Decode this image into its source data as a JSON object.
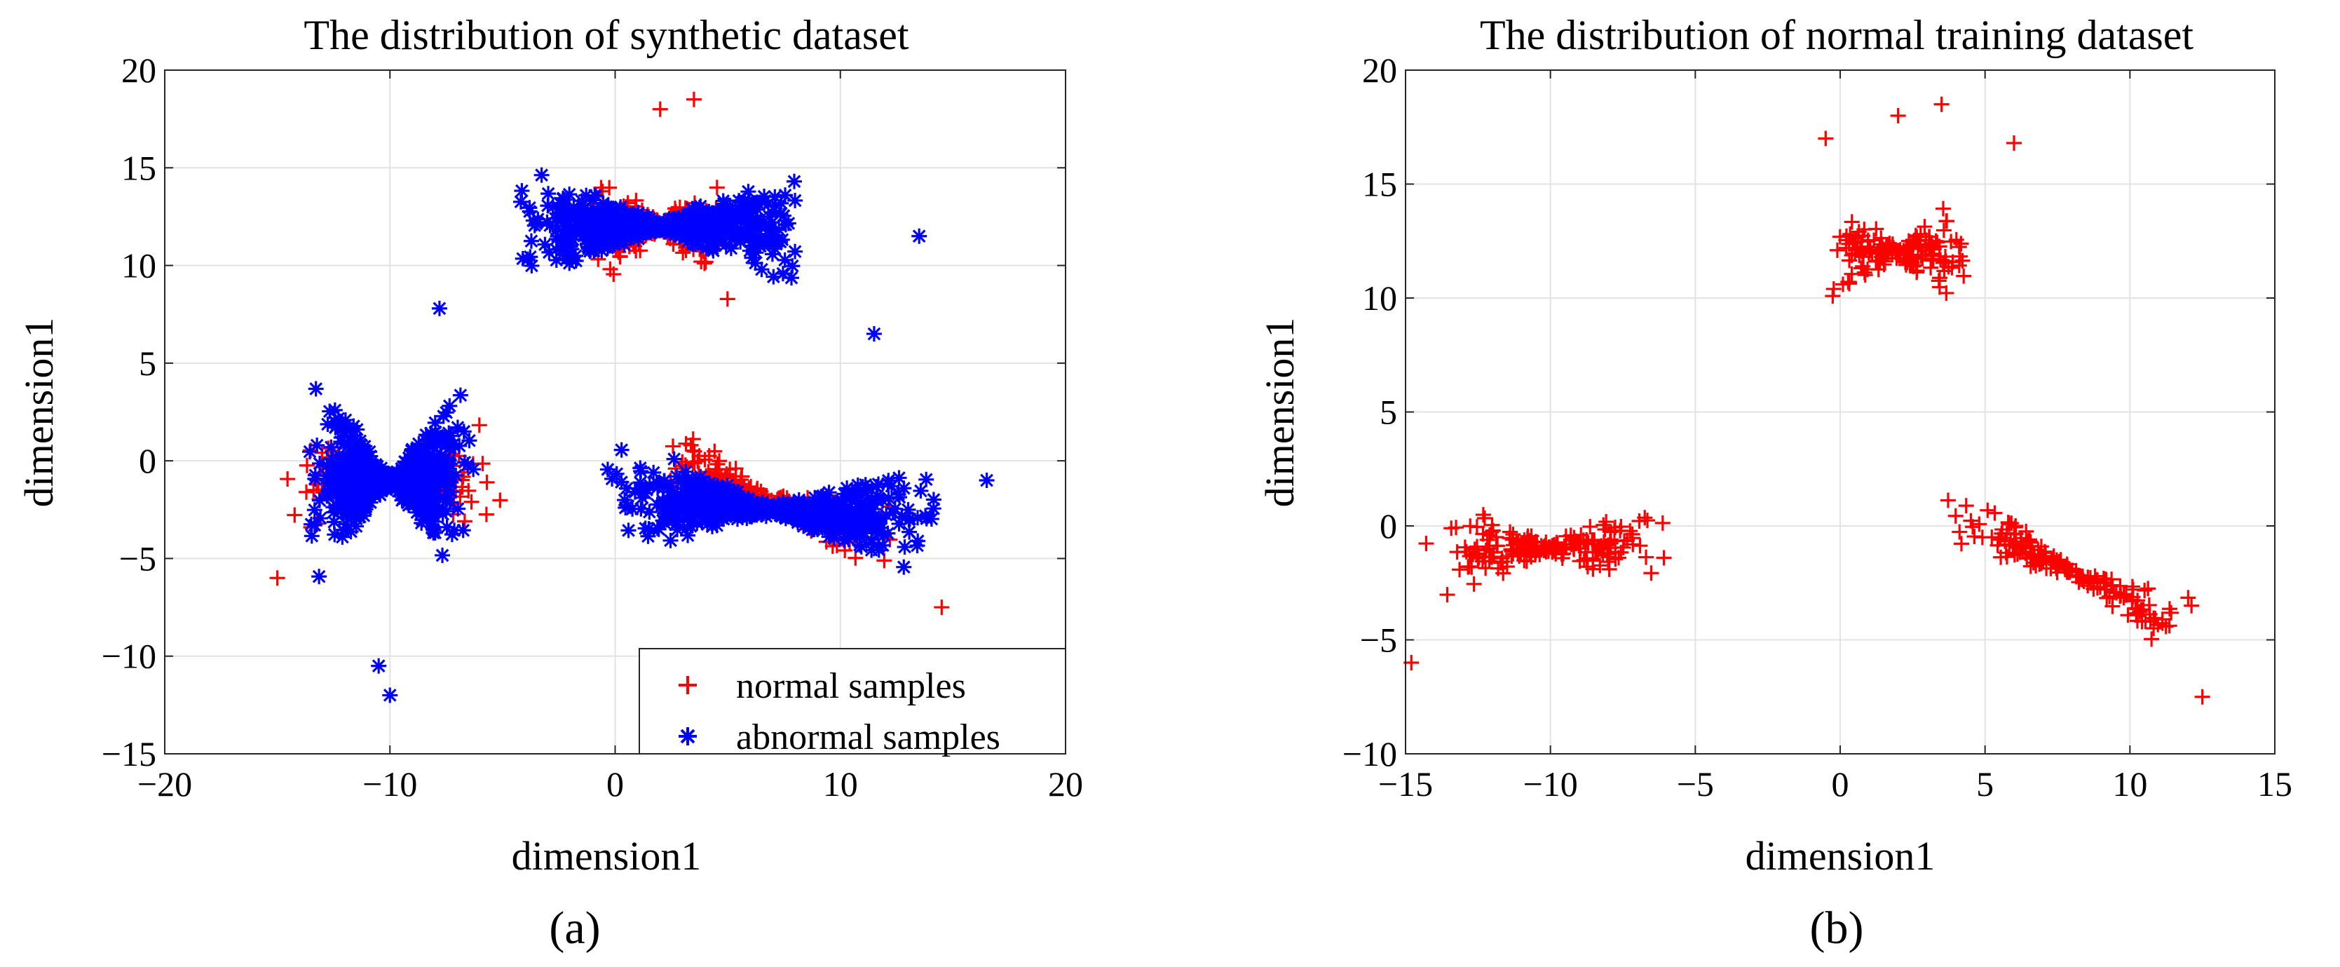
{
  "chart_data": [
    {
      "type": "scatter",
      "panel_label": "(a)",
      "title": "The distribution of synthetic dataset",
      "xlabel": "dimension1",
      "ylabel": "dimension1",
      "xlim": [
        -20,
        20
      ],
      "ylim": [
        -15,
        20
      ],
      "xticks": [
        -20,
        -10,
        0,
        10,
        20
      ],
      "yticks": [
        -15,
        -10,
        -5,
        0,
        5,
        10,
        15,
        20
      ],
      "grid": true,
      "legend_position": "bottom-right",
      "series": [
        {
          "name": "normal samples",
          "marker": "plus",
          "color": "#ff0000",
          "clusters": [
            {
              "center": [
                -10,
                -1
              ],
              "x_half_width": 5,
              "y_spread_at_ends": 3.5,
              "n": 220,
              "tilt": 0.0
            },
            {
              "center": [
                2,
                12
              ],
              "x_half_width": 3.5,
              "y_spread_at_ends": 4.5,
              "n": 200,
              "tilt": 0.0
            },
            {
              "center": [
                7,
                -2
              ],
              "x_half_width": 6,
              "y_spread_at_ends": 3,
              "n": 200,
              "tilt": -0.4
            }
          ],
          "extremes": [
            [
              3.5,
              18.5
            ],
            [
              2,
              18
            ],
            [
              -15,
              -6
            ],
            [
              14.5,
              -7.5
            ]
          ]
        },
        {
          "name": "abnormal samples",
          "marker": "asterisk",
          "color": "#0000ff",
          "clusters": [
            {
              "center": [
                -10,
                -1
              ],
              "x_half_width": 4,
              "y_spread_at_ends": 6.5,
              "n": 650,
              "tilt": 0.0
            },
            {
              "center": [
                2,
                12
              ],
              "x_half_width": 7,
              "y_spread_at_ends": 3.5,
              "n": 650,
              "tilt": 0.0
            },
            {
              "center": [
                7,
                -2.5
              ],
              "x_half_width": 8,
              "y_spread_at_ends": 3.5,
              "n": 650,
              "tilt": -0.1
            }
          ],
          "extremes": [
            [
              -10,
              -12
            ],
            [
              -10.5,
              -10.5
            ],
            [
              13.5,
              11.5
            ],
            [
              16.5,
              -1
            ],
            [
              11.5,
              6.5
            ],
            [
              -7.8,
              7.8
            ]
          ]
        }
      ]
    },
    {
      "type": "scatter",
      "panel_label": "(b)",
      "title": "The distribution of normal training dataset",
      "xlabel": "dimension1",
      "ylabel": "dimension1",
      "xlim": [
        -15,
        15
      ],
      "ylim": [
        -10,
        20
      ],
      "xticks": [
        -15,
        -10,
        -5,
        0,
        5,
        10,
        15
      ],
      "yticks": [
        -10,
        -5,
        0,
        5,
        10,
        15,
        20
      ],
      "grid": true,
      "series": [
        {
          "name": "",
          "marker": "plus",
          "color": "#ff0000",
          "clusters": [
            {
              "center": [
                -10,
                -1
              ],
              "x_half_width": 4.5,
              "y_spread_at_ends": 2.8,
              "n": 200,
              "tilt": 0.0
            },
            {
              "center": [
                2,
                12
              ],
              "x_half_width": 3,
              "y_spread_at_ends": 3.5,
              "n": 170,
              "tilt": 0.0
            },
            {
              "center": [
                8,
                -2
              ],
              "x_half_width": 5,
              "y_spread_at_ends": 1.8,
              "n": 180,
              "tilt": -0.65
            }
          ],
          "extremes": [
            [
              3.5,
              18.5
            ],
            [
              2,
              18
            ],
            [
              -14.8,
              -6
            ],
            [
              12.5,
              -7.5
            ],
            [
              6,
              16.8
            ],
            [
              -0.5,
              17
            ]
          ]
        }
      ]
    }
  ]
}
